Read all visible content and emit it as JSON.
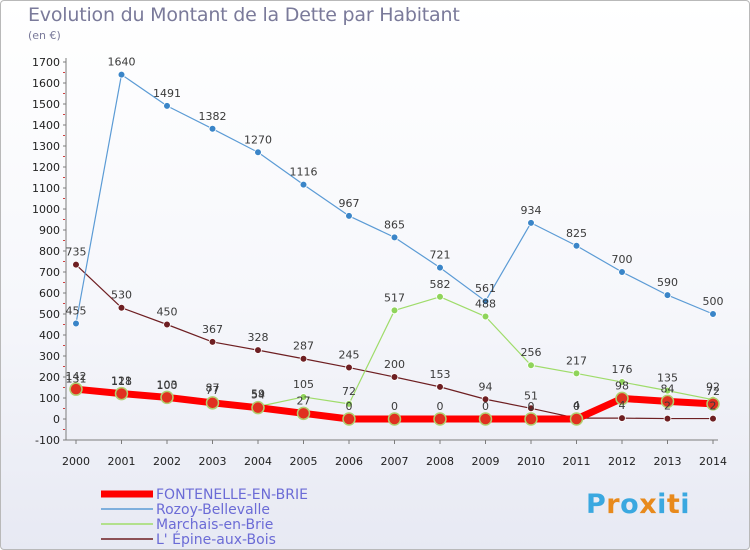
{
  "header": {
    "title": "Evolution du Montant de la Dette par Habitant",
    "unit": "(en €)"
  },
  "logo": {
    "text": "Proxiti",
    "colors": [
      "#3aa8e0",
      "#e88a1c",
      "#3aa8e0",
      "#e88a1c",
      "#3aa8e0",
      "#e88a1c",
      "#3aa8e0"
    ]
  },
  "chart_data": {
    "type": "line",
    "title": "Evolution du Montant de la Dette par Habitant",
    "ylabel": "(en €)",
    "xlabel": "",
    "ylim": [
      -100,
      1700
    ],
    "yticks": [
      -100,
      0,
      100,
      200,
      300,
      400,
      500,
      600,
      700,
      800,
      900,
      1000,
      1100,
      1200,
      1300,
      1400,
      1500,
      1600,
      1700
    ],
    "x": [
      "2000",
      "2001",
      "2002",
      "2003",
      "2004",
      "2005",
      "2006",
      "2007",
      "2008",
      "2009",
      "2010",
      "2011",
      "2012",
      "2013",
      "2014"
    ],
    "grid": false,
    "legend_position": "bottom-left",
    "series": [
      {
        "name": "FONTENELLE-EN-BRIE",
        "color": "#ff0000",
        "marker": "#e03020",
        "width": 7,
        "values": [
          142,
          121,
          103,
          77,
          54,
          27,
          0,
          0,
          0,
          0,
          0,
          0,
          98,
          84,
          72
        ],
        "labels": [
          "142",
          "121",
          "103",
          "77",
          "54",
          "27",
          "0",
          "0",
          "0",
          "0",
          "0",
          "0",
          "98",
          "84",
          "72"
        ]
      },
      {
        "name": "Rozoy-Bellevalle",
        "color": "#5b9bd5",
        "marker": "#3a85c8",
        "width": 1.2,
        "values": [
          455,
          1640,
          1491,
          1382,
          1270,
          1116,
          967,
          865,
          721,
          561,
          934,
          825,
          700,
          590,
          500
        ],
        "labels": [
          "455",
          "1640",
          "1491",
          "1382",
          "1270",
          "1116",
          "967",
          "865",
          "721",
          "561",
          "934",
          "825",
          "700",
          "590",
          "500"
        ]
      },
      {
        "name": "Marchais-en-Brie",
        "color": "#9fdc6a",
        "marker": "#8fd45a",
        "width": 1.2,
        "values": [
          131,
          118,
          100,
          87,
          59,
          105,
          72,
          517,
          582,
          488,
          256,
          217,
          176,
          135,
          92
        ],
        "labels": [
          "131",
          "118",
          "100",
          "87",
          "59",
          "105",
          "72",
          "517",
          "582",
          "488",
          "256",
          "217",
          "176",
          "135",
          "92"
        ]
      },
      {
        "name": "L' Épine-aux-Bois",
        "color": "#6e1f22",
        "marker": "#6e1f22",
        "width": 1.2,
        "values": [
          735,
          530,
          450,
          367,
          328,
          287,
          245,
          200,
          153,
          94,
          51,
          4,
          4,
          2,
          2
        ],
        "labels": [
          "735",
          "530",
          "450",
          "367",
          "328",
          "287",
          "245",
          "200",
          "153",
          "94",
          "51",
          "4",
          "4",
          "2",
          "2"
        ]
      }
    ]
  }
}
